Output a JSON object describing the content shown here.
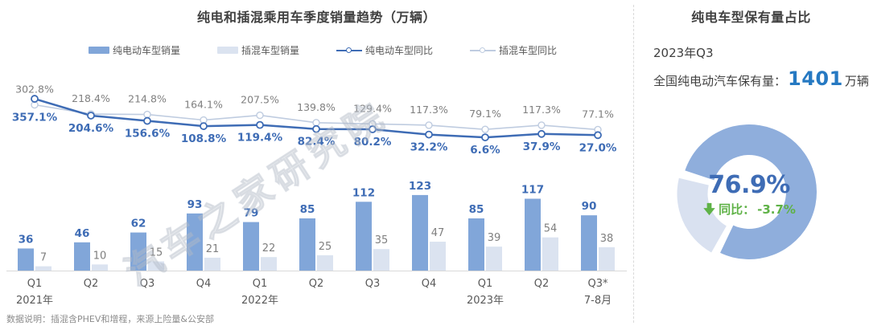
{
  "left_chart": {
    "title": "纯电和插混乘用车季度销量趋势（万辆）",
    "legend": [
      {
        "label": "纯电动车型销量",
        "type": "bar",
        "color": "#81A6D9"
      },
      {
        "label": "插混车型销量",
        "type": "bar",
        "color": "#DBE3F0"
      },
      {
        "label": "纯电动车型同比",
        "type": "line",
        "color": "#3E6CB5"
      },
      {
        "label": "插混车型同比",
        "type": "line",
        "color": "#BFCCE0"
      }
    ],
    "footnote": "数据说明：插混含PHEV和增程，来源上险量&公安部"
  },
  "chart_data": {
    "type": "bar+line",
    "title": "纯电和插混乘用车季度销量趋势（万辆）",
    "bar_unit": "万辆",
    "line_unit": "%",
    "legend_position": "top",
    "grid": false,
    "categories": [
      "Q1",
      "Q2",
      "Q3",
      "Q4",
      "Q1",
      "Q2",
      "Q3",
      "Q4",
      "Q1",
      "Q2",
      "Q3*"
    ],
    "group_labels": [
      {
        "index": 0,
        "label": "2021年"
      },
      {
        "index": 4,
        "label": "2022年"
      },
      {
        "index": 8,
        "label": "2023年"
      },
      {
        "index": 10,
        "label": "7-8月"
      }
    ],
    "series": [
      {
        "name": "纯电动车型销量",
        "type": "bar",
        "values": [
          36,
          46,
          62,
          93,
          79,
          85,
          112,
          123,
          85,
          117,
          90
        ]
      },
      {
        "name": "插混车型销量",
        "type": "bar",
        "values": [
          7,
          10,
          15,
          21,
          22,
          25,
          35,
          47,
          39,
          54,
          38
        ]
      },
      {
        "name": "纯电动车型同比",
        "type": "line",
        "values": [
          357.1,
          204.6,
          156.6,
          108.8,
          119.4,
          82.4,
          80.2,
          32.2,
          6.6,
          37.9,
          27.0
        ]
      },
      {
        "name": "插混车型同比",
        "type": "line",
        "values": [
          302.8,
          218.4,
          214.8,
          164.1,
          207.5,
          139.8,
          129.4,
          117.3,
          79.1,
          117.3,
          77.1
        ]
      }
    ]
  },
  "right_panel": {
    "title": "纯电车型保有量占比",
    "period": "2023年Q3",
    "holdings_label": "全国纯电动汽车保有量：",
    "holdings_value": "1401",
    "holdings_unit": "万辆",
    "donut": {
      "share": 76.9,
      "share_label": "76.9%",
      "yoy_label": "同比：",
      "yoy_value": "-3.7%"
    }
  },
  "watermark": "汽车之家研究院",
  "colors": {
    "bev_bar": "#81A6D9",
    "phev_bar": "#DBE3F0",
    "bev_line": "#3E6CB5",
    "phev_line": "#BFCCE0",
    "value_blue": "#3E6CB5",
    "gray_text": "#7F7F7F",
    "axis_text": "#595959",
    "axis_line": "#D9D9D9",
    "holdings_blue": "#2679C2",
    "donut_bev": "#8FAEDC",
    "donut_other": "#D9E1F0",
    "yoy_green": "#5FB247"
  }
}
